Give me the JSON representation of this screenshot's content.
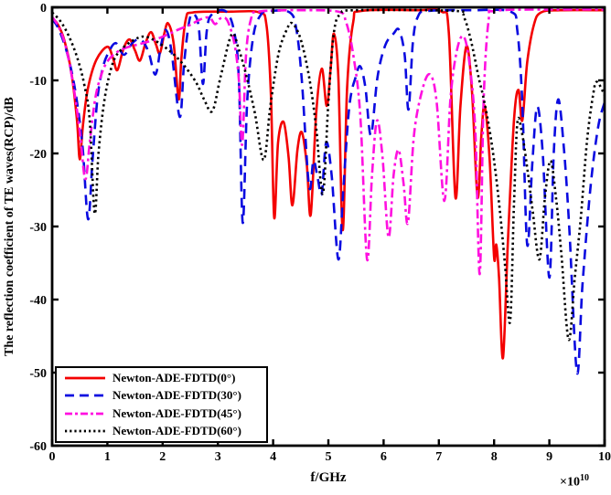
{
  "figure": {
    "xlabel": "f/GHz",
    "x_mult_base": "×10",
    "x_mult_exp": "10",
    "ylabel": "The reflection coefficient of TE waves(RCP)/dB"
  },
  "legend": {
    "entries": [
      {
        "label": "Newton-ADE-FDTD(0°)"
      },
      {
        "label": "Newton-ADE-FDTD(30°)"
      },
      {
        "label": "Newton-ADE-FDTD(45°)"
      },
      {
        "label": "Newton-ADE-FDTD(60°)"
      }
    ]
  },
  "chart_data": {
    "type": "line",
    "title": "",
    "xlabel": "f/GHz",
    "ylabel": "The reflection coefficient of TE waves(RCP)/dB",
    "x_scale_note": "×10^10",
    "xlim": [
      0,
      10
    ],
    "ylim": [
      -60,
      0
    ],
    "x_ticks": [
      0,
      1,
      2,
      3,
      4,
      5,
      6,
      7,
      8,
      9,
      10
    ],
    "y_ticks": [
      0,
      -10,
      -20,
      -30,
      -40,
      -50,
      -60
    ],
    "grid": false,
    "legend_position": "lower-left",
    "series": [
      {
        "name": "Newton-ADE-FDTD(0°)",
        "slug": "newton-ade-fdtd-0deg",
        "color": "#f40000",
        "style": "solid",
        "points": [
          [
            0,
            -1.5
          ],
          [
            0.1,
            -2.3
          ],
          [
            0.22,
            -4.5
          ],
          [
            0.35,
            -9
          ],
          [
            0.45,
            -15.5
          ],
          [
            0.5,
            -20.8
          ],
          [
            0.56,
            -16
          ],
          [
            0.65,
            -11
          ],
          [
            0.8,
            -7.2
          ],
          [
            1.0,
            -5.4
          ],
          [
            1.1,
            -6.9
          ],
          [
            1.18,
            -8.6
          ],
          [
            1.29,
            -5.7
          ],
          [
            1.4,
            -4.4
          ],
          [
            1.5,
            -5.9
          ],
          [
            1.59,
            -7.3
          ],
          [
            1.69,
            -4.9
          ],
          [
            1.79,
            -3.4
          ],
          [
            1.88,
            -5.1
          ],
          [
            1.95,
            -6.3
          ],
          [
            2.03,
            -3.6
          ],
          [
            2.1,
            -2.2
          ],
          [
            2.2,
            -5
          ],
          [
            2.29,
            -12.6
          ],
          [
            2.34,
            -7
          ],
          [
            2.42,
            -1.6
          ],
          [
            2.55,
            -0.7
          ],
          [
            3.2,
            -0.6
          ],
          [
            3.75,
            -0.7
          ],
          [
            3.88,
            -2.5
          ],
          [
            3.96,
            -12
          ],
          [
            4.02,
            -28.8
          ],
          [
            4.09,
            -18.5
          ],
          [
            4.19,
            -15.7
          ],
          [
            4.28,
            -20.5
          ],
          [
            4.35,
            -27.1
          ],
          [
            4.44,
            -19.5
          ],
          [
            4.52,
            -17.1
          ],
          [
            4.61,
            -21.5
          ],
          [
            4.68,
            -28.4
          ],
          [
            4.78,
            -14.5
          ],
          [
            4.88,
            -8.4
          ],
          [
            4.97,
            -13.5
          ],
          [
            5.04,
            -8.5
          ],
          [
            5.1,
            -3.6
          ],
          [
            5.18,
            -9.5
          ],
          [
            5.26,
            -30.5
          ],
          [
            5.34,
            -11
          ],
          [
            5.45,
            -2
          ],
          [
            5.6,
            -0.5
          ],
          [
            6.6,
            -0.4
          ],
          [
            7.05,
            -0.6
          ],
          [
            7.18,
            -3.5
          ],
          [
            7.3,
            -26
          ],
          [
            7.39,
            -13.5
          ],
          [
            7.5,
            -5.3
          ],
          [
            7.6,
            -11.5
          ],
          [
            7.7,
            -26
          ],
          [
            7.77,
            -17.5
          ],
          [
            7.83,
            -13.5
          ],
          [
            7.92,
            -21
          ],
          [
            8.0,
            -34.2
          ],
          [
            8.04,
            -32.5
          ],
          [
            8.09,
            -37
          ],
          [
            8.16,
            -48
          ],
          [
            8.25,
            -32
          ],
          [
            8.36,
            -15.5
          ],
          [
            8.44,
            -11.3
          ],
          [
            8.51,
            -15.5
          ],
          [
            8.6,
            -7.5
          ],
          [
            8.72,
            -2.4
          ],
          [
            8.85,
            -0.7
          ],
          [
            9.2,
            -0.4
          ],
          [
            10,
            -0.4
          ]
        ]
      },
      {
        "name": "Newton-ADE-FDTD(30°)",
        "slug": "newton-ade-fdtd-30deg",
        "color": "#0a0ae0",
        "style": "dashed",
        "points": [
          [
            0,
            -1.6
          ],
          [
            0.12,
            -3
          ],
          [
            0.28,
            -6.5
          ],
          [
            0.42,
            -11.5
          ],
          [
            0.55,
            -19
          ],
          [
            0.65,
            -29
          ],
          [
            0.73,
            -21
          ],
          [
            0.82,
            -12.5
          ],
          [
            0.92,
            -8.2
          ],
          [
            1.02,
            -6.2
          ],
          [
            1.15,
            -4.9
          ],
          [
            1.3,
            -6.5
          ],
          [
            1.45,
            -4.9
          ],
          [
            1.6,
            -4.4
          ],
          [
            1.74,
            -6
          ],
          [
            1.87,
            -9.2
          ],
          [
            1.97,
            -5.2
          ],
          [
            2.06,
            -3.1
          ],
          [
            2.16,
            -6
          ],
          [
            2.31,
            -15
          ],
          [
            2.39,
            -7.5
          ],
          [
            2.49,
            -1.6
          ],
          [
            2.59,
            -1.1
          ],
          [
            2.66,
            -3.2
          ],
          [
            2.73,
            -10.5
          ],
          [
            2.8,
            -3.2
          ],
          [
            2.9,
            -0.9
          ],
          [
            3.15,
            -0.6
          ],
          [
            3.3,
            -3.5
          ],
          [
            3.38,
            -10
          ],
          [
            3.45,
            -29.5
          ],
          [
            3.53,
            -13
          ],
          [
            3.64,
            -4
          ],
          [
            3.78,
            -1
          ],
          [
            3.95,
            -0.5
          ],
          [
            4.3,
            -0.7
          ],
          [
            4.42,
            -3
          ],
          [
            4.52,
            -10
          ],
          [
            4.65,
            -24.5
          ],
          [
            4.73,
            -21
          ],
          [
            4.81,
            -23.5
          ],
          [
            4.88,
            -25.5
          ],
          [
            4.96,
            -18.5
          ],
          [
            5.06,
            -23
          ],
          [
            5.18,
            -34.5
          ],
          [
            5.27,
            -25
          ],
          [
            5.38,
            -13.5
          ],
          [
            5.5,
            -9.4
          ],
          [
            5.58,
            -8.1
          ],
          [
            5.67,
            -11
          ],
          [
            5.77,
            -17.5
          ],
          [
            5.89,
            -9.5
          ],
          [
            6.03,
            -5.2
          ],
          [
            6.18,
            -3.6
          ],
          [
            6.28,
            -3.1
          ],
          [
            6.38,
            -6.5
          ],
          [
            6.45,
            -14
          ],
          [
            6.53,
            -4.8
          ],
          [
            6.62,
            -1.3
          ],
          [
            6.8,
            -0.5
          ],
          [
            7.6,
            -0.4
          ],
          [
            8.3,
            -0.6
          ],
          [
            8.42,
            -3.2
          ],
          [
            8.51,
            -13
          ],
          [
            8.6,
            -32.5
          ],
          [
            8.69,
            -21.5
          ],
          [
            8.78,
            -13.6
          ],
          [
            8.88,
            -20
          ],
          [
            9.0,
            -37
          ],
          [
            9.08,
            -20
          ],
          [
            9.16,
            -12.6
          ],
          [
            9.26,
            -19
          ],
          [
            9.36,
            -30
          ],
          [
            9.5,
            -50
          ],
          [
            9.6,
            -38
          ],
          [
            9.74,
            -25
          ],
          [
            9.88,
            -16.5
          ],
          [
            10,
            -13
          ]
        ]
      },
      {
        "name": "Newton-ADE-FDTD(45°)",
        "slug": "newton-ade-fdtd-45deg",
        "color": "#ff10e0",
        "style": "dashdot",
        "points": [
          [
            0,
            -1.3
          ],
          [
            0.12,
            -2.7
          ],
          [
            0.25,
            -5.5
          ],
          [
            0.38,
            -10.5
          ],
          [
            0.5,
            -17
          ],
          [
            0.6,
            -23.5
          ],
          [
            0.68,
            -18.5
          ],
          [
            0.78,
            -12.5
          ],
          [
            0.9,
            -9
          ],
          [
            1.02,
            -7.2
          ],
          [
            1.18,
            -6.1
          ],
          [
            1.35,
            -5.5
          ],
          [
            1.6,
            -5
          ],
          [
            1.87,
            -4.4
          ],
          [
            2.1,
            -3.7
          ],
          [
            2.3,
            -3
          ],
          [
            2.5,
            -2.4
          ],
          [
            2.7,
            -1.6
          ],
          [
            2.85,
            -1.4
          ],
          [
            2.95,
            -2.3
          ],
          [
            3.05,
            -1.5
          ],
          [
            3.17,
            -1.8
          ],
          [
            3.3,
            -5
          ],
          [
            3.38,
            -10
          ],
          [
            3.44,
            -18.8
          ],
          [
            3.51,
            -6.5
          ],
          [
            3.6,
            -1.6
          ],
          [
            3.72,
            -0.6
          ],
          [
            4.5,
            -0.4
          ],
          [
            5.18,
            -0.6
          ],
          [
            5.32,
            -2
          ],
          [
            5.45,
            -6.5
          ],
          [
            5.58,
            -15
          ],
          [
            5.7,
            -34.5
          ],
          [
            5.79,
            -23
          ],
          [
            5.88,
            -15.5
          ],
          [
            5.98,
            -20.5
          ],
          [
            6.09,
            -31.5
          ],
          [
            6.18,
            -23
          ],
          [
            6.27,
            -19.5
          ],
          [
            6.36,
            -24
          ],
          [
            6.44,
            -29.5
          ],
          [
            6.55,
            -17.5
          ],
          [
            6.7,
            -11.3
          ],
          [
            6.84,
            -9.2
          ],
          [
            6.96,
            -13
          ],
          [
            7.1,
            -26.5
          ],
          [
            7.21,
            -12.5
          ],
          [
            7.33,
            -5.8
          ],
          [
            7.45,
            -4
          ],
          [
            7.56,
            -8
          ],
          [
            7.66,
            -17
          ],
          [
            7.74,
            -36.5
          ],
          [
            7.81,
            -13
          ],
          [
            7.9,
            -1.8
          ],
          [
            8.02,
            -0.5
          ],
          [
            9.0,
            -0.3
          ],
          [
            10,
            -0.3
          ]
        ]
      },
      {
        "name": "Newton-ADE-FDTD(60°)",
        "slug": "newton-ade-fdtd-60deg",
        "color": "#000000",
        "style": "dotted",
        "points": [
          [
            0,
            -0.7
          ],
          [
            0.15,
            -1.9
          ],
          [
            0.3,
            -3.9
          ],
          [
            0.45,
            -6.8
          ],
          [
            0.58,
            -10.5
          ],
          [
            0.68,
            -15.5
          ],
          [
            0.77,
            -28.2
          ],
          [
            0.84,
            -20
          ],
          [
            0.95,
            -12.5
          ],
          [
            1.1,
            -7.6
          ],
          [
            1.25,
            -5.8
          ],
          [
            1.45,
            -4.6
          ],
          [
            1.65,
            -4.0
          ],
          [
            1.85,
            -4.5
          ],
          [
            2.1,
            -5.8
          ],
          [
            2.35,
            -7.6
          ],
          [
            2.6,
            -10.2
          ],
          [
            2.75,
            -12.6
          ],
          [
            2.9,
            -14.2
          ],
          [
            3.05,
            -9.5
          ],
          [
            3.25,
            -3.7
          ],
          [
            3.38,
            -5.8
          ],
          [
            3.52,
            -9.5
          ],
          [
            3.67,
            -14.5
          ],
          [
            3.83,
            -20.9
          ],
          [
            3.95,
            -13.5
          ],
          [
            4.1,
            -6.3
          ],
          [
            4.25,
            -3
          ],
          [
            4.35,
            -2.2
          ],
          [
            4.5,
            -4.4
          ],
          [
            4.65,
            -9.5
          ],
          [
            4.78,
            -16.5
          ],
          [
            4.9,
            -25.5
          ],
          [
            5.0,
            -13
          ],
          [
            5.1,
            -3.5
          ],
          [
            5.22,
            -0.9
          ],
          [
            5.5,
            -0.4
          ],
          [
            7.3,
            -0.5
          ],
          [
            7.45,
            -1.3
          ],
          [
            7.58,
            -4.5
          ],
          [
            7.72,
            -9.6
          ],
          [
            7.8,
            -12.1
          ],
          [
            7.9,
            -16
          ],
          [
            8.0,
            -21
          ],
          [
            8.1,
            -27.5
          ],
          [
            8.2,
            -35.5
          ],
          [
            8.29,
            -43
          ],
          [
            8.36,
            -27
          ],
          [
            8.42,
            -15.8
          ],
          [
            8.5,
            -17
          ],
          [
            8.6,
            -22
          ],
          [
            8.7,
            -28
          ],
          [
            8.82,
            -34.5
          ],
          [
            8.92,
            -26
          ],
          [
            9.02,
            -21
          ],
          [
            9.12,
            -26
          ],
          [
            9.22,
            -34
          ],
          [
            9.35,
            -45.5
          ],
          [
            9.46,
            -37
          ],
          [
            9.57,
            -28.8
          ],
          [
            9.68,
            -18.4
          ],
          [
            9.79,
            -12.1
          ],
          [
            9.86,
            -10.2
          ],
          [
            10,
            -12
          ]
        ]
      }
    ]
  }
}
